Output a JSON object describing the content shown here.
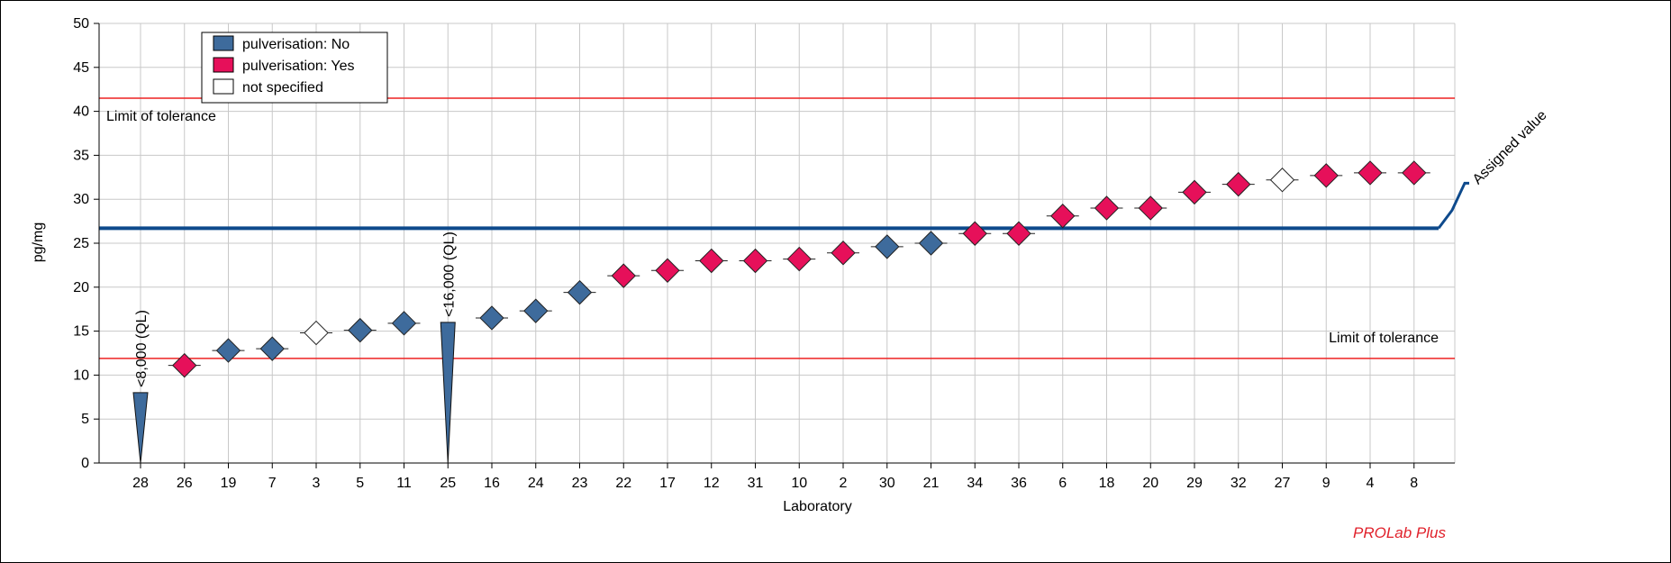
{
  "chart_data": {
    "type": "scatter",
    "xlabel": "Laboratory",
    "ylabel": "pg/mg",
    "ylim": [
      0,
      50
    ],
    "yticks": [
      0,
      5,
      10,
      15,
      20,
      25,
      30,
      35,
      40,
      45,
      50
    ],
    "grid": true,
    "legend_position": "top-left",
    "legend": [
      {
        "label": "pulverisation: No",
        "color": "#3e6b9c"
      },
      {
        "label": "pulverisation: Yes",
        "color": "#e6105a"
      },
      {
        "label": "not specified",
        "color": "#ffffff"
      }
    ],
    "assigned_value": 26.7,
    "assigned_value_label": "Assigned value",
    "tolerance_upper": 41.5,
    "tolerance_lower": 11.9,
    "tolerance_label": "Limit of tolerance",
    "laboratories": [
      "28",
      "26",
      "19",
      "7",
      "3",
      "5",
      "11",
      "25",
      "16",
      "24",
      "23",
      "22",
      "17",
      "12",
      "31",
      "10",
      "2",
      "30",
      "21",
      "34",
      "36",
      "6",
      "18",
      "20",
      "29",
      "32",
      "27",
      "9",
      "4",
      "8"
    ],
    "values": [
      8.0,
      11.1,
      12.8,
      13.0,
      14.8,
      15.1,
      15.9,
      16.0,
      16.5,
      17.3,
      19.4,
      21.3,
      21.9,
      23.0,
      23.0,
      23.2,
      23.9,
      24.6,
      25.0,
      26.1,
      26.1,
      28.1,
      29.0,
      29.0,
      30.8,
      31.7,
      32.2,
      32.7,
      33.0,
      33.0
    ],
    "groups": [
      "below_ql",
      "yes",
      "no",
      "no",
      "unspecified",
      "no",
      "no",
      "below_ql",
      "no",
      "no",
      "no",
      "yes",
      "yes",
      "yes",
      "yes",
      "yes",
      "yes",
      "no",
      "no",
      "yes",
      "yes",
      "yes",
      "yes",
      "yes",
      "yes",
      "yes",
      "unspecified",
      "yes",
      "yes",
      "yes"
    ],
    "ql_labels": {
      "28": "<8,000 (QL)",
      "25": "<16,000 (QL)"
    }
  },
  "footer": {
    "brand": "PROLab Plus"
  },
  "colors": {
    "no": "#3e6b9c",
    "yes": "#e6105a",
    "unspecified": "#ffffff",
    "assigned": "#0e4a8c",
    "tolerance": "#ee2222",
    "grid": "#c8c8c8",
    "brand": "#e0202a"
  }
}
